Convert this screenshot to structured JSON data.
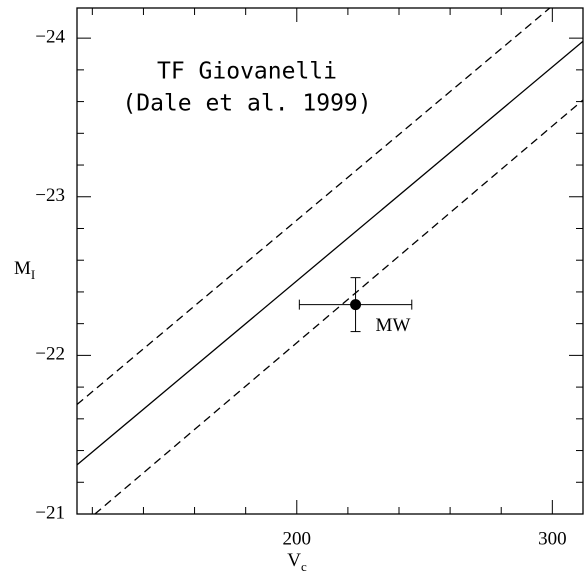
{
  "chart_data": {
    "type": "scatter",
    "xlabel": "V",
    "xlabel_sub": "c",
    "ylabel": "M",
    "ylabel_sub": "I",
    "annotations": [
      "TF Giovanelli",
      "(Dale et al. 1999)"
    ],
    "xlim": [
      114,
      312
    ],
    "ylim": [
      -21,
      -24.19
    ],
    "xticks": [
      200,
      300
    ],
    "yticks": [
      {
        "value": -24,
        "label": "−24"
      },
      {
        "value": -23,
        "label": "−23"
      },
      {
        "value": -22,
        "label": "−22"
      },
      {
        "value": -21,
        "label": "−21"
      }
    ],
    "xminor_ticks": [
      120,
      140,
      160,
      180,
      220,
      240,
      260,
      280
    ],
    "yminor_ticks": [
      -21.2,
      -21.4,
      -21.6,
      -21.8,
      -22.2,
      -22.4,
      -22.6,
      -22.8,
      -23.2,
      -23.4,
      -23.6,
      -23.8,
      -24.2
    ],
    "lines": [
      {
        "style": "solid",
        "color": "#000000",
        "x": [
          114,
          312
        ],
        "values": [
          -21.31,
          -23.98
        ]
      },
      {
        "style": "dashed",
        "color": "#000000",
        "x": [
          114,
          299
        ],
        "values": [
          -21.69,
          -24.19
        ]
      },
      {
        "style": "dashed",
        "color": "#000000",
        "x": [
          121,
          312
        ],
        "values": [
          -21,
          -23.61
        ]
      }
    ],
    "series": [
      {
        "label": "MW",
        "color": "#000000",
        "x": [
          223
        ],
        "values": [
          -22.32
        ],
        "xerr": [
          22
        ],
        "yerr": [
          0.17
        ]
      }
    ]
  }
}
